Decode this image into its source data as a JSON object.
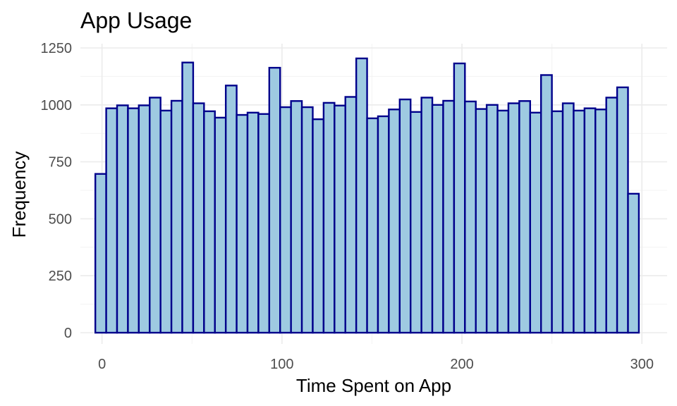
{
  "chart_data": {
    "type": "bar",
    "title": "App Usage",
    "xlabel": "Time Spent on App",
    "ylabel": "Frequency",
    "xlim": [
      -12,
      314
    ],
    "ylim": [
      0,
      1250
    ],
    "x_ticks": [
      0,
      100,
      200,
      300
    ],
    "y_ticks": [
      0,
      250,
      500,
      750,
      1000,
      1250
    ],
    "bin_width": 6.04,
    "bin_start": -3.7,
    "fill_color": "#9ecae1",
    "stroke_color": "#00008b",
    "grid": true,
    "values": [
      697,
      985,
      998,
      985,
      998,
      1032,
      975,
      1018,
      1186,
      1007,
      972,
      944,
      1085,
      956,
      966,
      960,
      1163,
      990,
      1017,
      990,
      937,
      1009,
      997,
      1035,
      1204,
      941,
      950,
      980,
      1024,
      969,
      1032,
      1000,
      1018,
      1182,
      1015,
      982,
      1000,
      975,
      1007,
      1017,
      966,
      1131,
      972,
      1007,
      975,
      985,
      980,
      1032,
      1077,
      610
    ]
  }
}
